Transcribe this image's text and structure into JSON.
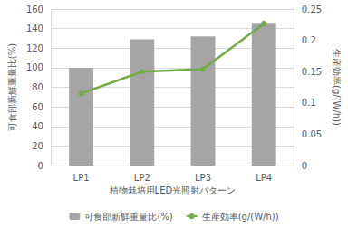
{
  "chart_data": {
    "type": "bar",
    "xlabel": "植物栽培用LED光照射パターン",
    "ylabel": "可食部新鮮重量比(%)",
    "y2label": "生産効率(g/(W/h))",
    "categories": [
      "LP1",
      "LP2",
      "LP3",
      "LP4"
    ],
    "series": [
      {
        "name": "可食部新鮮重量比(%)",
        "type": "bar",
        "color": "#a5a5a5",
        "values": [
          100,
          129,
          132,
          146
        ]
      },
      {
        "name": "生産効率(g/(W/h))",
        "type": "line",
        "axis": "y2",
        "color": "#70ad47",
        "marker": "circle",
        "values": [
          0.115,
          0.15,
          0.154,
          0.227
        ]
      }
    ],
    "ylim": [
      0,
      160
    ],
    "yticks": [
      0,
      20,
      40,
      60,
      80,
      100,
      120,
      140,
      160
    ],
    "y2lim": [
      0,
      0.25
    ],
    "y2ticks": [
      0,
      0.05,
      0.1,
      0.15,
      0.2,
      0.25
    ],
    "grid": true,
    "legend": "bottom"
  }
}
